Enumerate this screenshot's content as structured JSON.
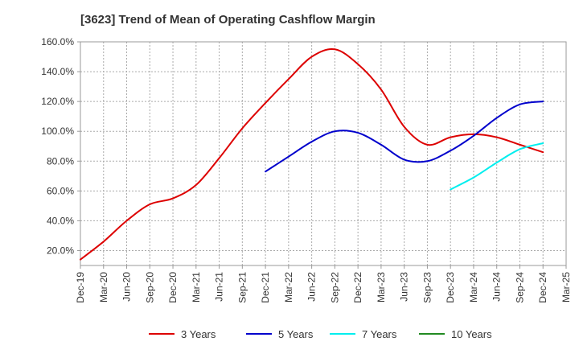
{
  "chart_data": {
    "type": "line",
    "title": "[3623]  Trend of Mean of Operating Cashflow Margin",
    "xlabel": "",
    "ylabel": "",
    "x": [
      "Dec-19",
      "Mar-20",
      "Jun-20",
      "Sep-20",
      "Dec-20",
      "Mar-21",
      "Jun-21",
      "Sep-21",
      "Dec-21",
      "Mar-22",
      "Jun-22",
      "Sep-22",
      "Dec-22",
      "Mar-23",
      "Jun-23",
      "Sep-23",
      "Dec-23",
      "Mar-24",
      "Jun-24",
      "Sep-24",
      "Dec-24",
      "Mar-25"
    ],
    "ylim": [
      10,
      160
    ],
    "yticks": [
      20,
      40,
      60,
      80,
      100,
      120,
      140,
      160
    ],
    "ytick_labels": [
      "20.0%",
      "40.0%",
      "60.0%",
      "80.0%",
      "100.0%",
      "120.0%",
      "140.0%",
      "160.0%"
    ],
    "y_unit": "%",
    "grid": true,
    "legend_position": "bottom",
    "series": [
      {
        "name": "3 Years",
        "color": "#dd0000",
        "values": [
          14,
          26,
          40,
          51,
          55,
          64,
          82,
          102,
          119,
          135,
          150,
          155,
          145,
          128,
          103,
          91,
          96,
          98,
          96,
          91,
          86,
          null
        ]
      },
      {
        "name": "5 Years",
        "color": "#0000cc",
        "values": [
          null,
          null,
          null,
          null,
          null,
          null,
          null,
          null,
          73,
          83,
          93,
          100,
          99,
          91,
          81,
          80,
          87,
          97,
          109,
          118,
          120,
          null
        ]
      },
      {
        "name": "7 Years",
        "color": "#00eeee",
        "values": [
          null,
          null,
          null,
          null,
          null,
          null,
          null,
          null,
          null,
          null,
          null,
          null,
          null,
          null,
          null,
          null,
          61,
          69,
          79,
          88,
          92,
          null
        ]
      },
      {
        "name": "10 Years",
        "color": "#228b22",
        "values": [
          null,
          null,
          null,
          null,
          null,
          null,
          null,
          null,
          null,
          null,
          null,
          null,
          null,
          null,
          null,
          null,
          null,
          null,
          null,
          null,
          null,
          null
        ]
      }
    ]
  }
}
